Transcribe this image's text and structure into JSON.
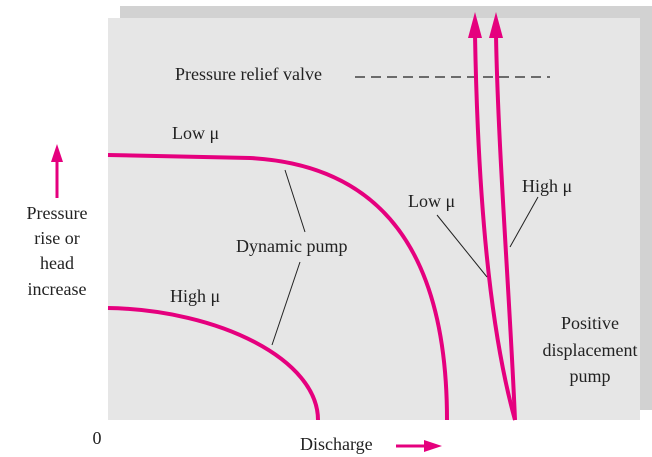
{
  "relief_valve": "Pressure relief valve",
  "dynamic": {
    "low": "Low μ",
    "high": "High μ",
    "label": "Dynamic pump"
  },
  "positive": {
    "low": "Low μ",
    "high": "High μ",
    "label": [
      "Positive",
      "displacement",
      "pump"
    ]
  },
  "y_axis": [
    "Pressure",
    "rise or",
    "head",
    "increase"
  ],
  "origin": "0",
  "x_axis": "Discharge"
}
